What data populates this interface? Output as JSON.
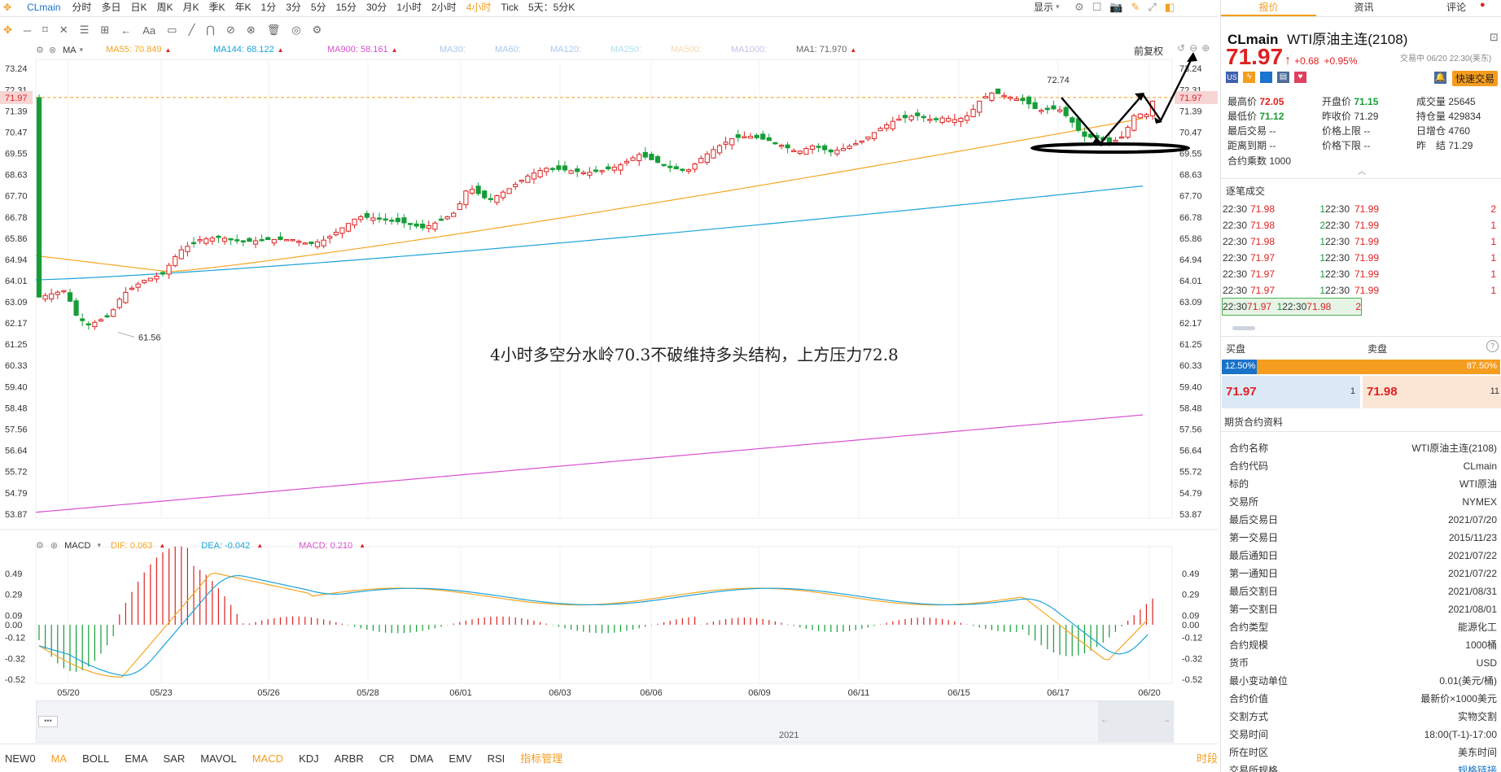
{
  "toolbar": {
    "symbol": "CLmain",
    "periods": [
      "分时",
      "多日",
      "日K",
      "周K",
      "月K",
      "季K",
      "年K",
      "1分",
      "3分",
      "5分",
      "15分",
      "30分",
      "1小时",
      "2小时",
      "4小时",
      "Tick",
      "5天：5分K"
    ],
    "active_period": "4小时",
    "display_label": "显示",
    "draw_tools": [
      "✥",
      "─",
      "⌑",
      "✕",
      "☰",
      "⊞",
      "←",
      "Aa",
      "▭",
      "╱",
      "⋂",
      "⊘",
      "⊗",
      "🗑",
      "◎",
      "⚙"
    ]
  },
  "main_legend": {
    "ma_label": "MA",
    "items": [
      {
        "text": "MA55: 70.849",
        "color": "#f5a623"
      },
      {
        "text": "MA144: 68.122",
        "color": "#1aa3d9"
      },
      {
        "text": "MA900: 58.161",
        "color": "#d94fd1"
      },
      {
        "text": "MA30:",
        "color": "#a8c9f0"
      },
      {
        "text": "MA60:",
        "color": "#a8c9f0"
      },
      {
        "text": "MA120:",
        "color": "#a8c9f0"
      },
      {
        "text": "MA250:",
        "color": "#a8e0f0"
      },
      {
        "text": "MA500:",
        "color": "#f3dcb0"
      },
      {
        "text": "MA1000:",
        "color": "#c9c0f0"
      },
      {
        "text": "MA1: 71.970",
        "color": "#666666"
      }
    ],
    "restore_label": "前复权"
  },
  "price_axis": [
    "73.24",
    "72.31",
    "71.39",
    "70.47",
    "69.55",
    "68.63",
    "67.70",
    "66.78",
    "65.86",
    "64.94",
    "64.01",
    "63.09",
    "62.17",
    "61.25",
    "60.33",
    "59.40",
    "58.48",
    "57.56",
    "56.64",
    "55.72",
    "54.79",
    "53.87"
  ],
  "current_price_tag": "71.97",
  "annotation": "4小时多空分水岭70.3不破维持多头结构，上方压力72.8",
  "high_label": "72.74",
  "low_label": "61.56",
  "macd_legend": {
    "label": "MACD",
    "dif": "DIF: 0.063",
    "dea": "DEA: -0.042",
    "macd": "MACD: 0.210"
  },
  "macd_axis": [
    "0.49",
    "0.29",
    "0.09",
    "0.00",
    "-0.12",
    "-0.32",
    "-0.52"
  ],
  "date_axis": [
    "05/20",
    "05/23",
    "05/26",
    "05/28",
    "06/01",
    "06/03",
    "06/06",
    "06/09",
    "06/11",
    "06/15",
    "06/17",
    "06/20"
  ],
  "navigator_year": "2021",
  "bottom_indicators": [
    "NEW0",
    "MA",
    "BOLL",
    "EMA",
    "SAR",
    "MAVOL",
    "MACD",
    "KDJ",
    "ARBR",
    "CR",
    "DMA",
    "EMV",
    "RSI",
    "指标管理"
  ],
  "bottom_active": [
    "MA",
    "MACD"
  ],
  "bottom_right": "时段",
  "right_tabs": [
    "报价",
    "资讯",
    "评论"
  ],
  "quote": {
    "code": "CLmain",
    "name": "WTI原油主连(2108)",
    "price": "71.97",
    "arrow": "↑",
    "change": "+0.68",
    "change_pct": "+0.95%",
    "trade_time": "交易中 06/20 22:30(美东)",
    "quick_trade": "快速交易",
    "stats": [
      {
        "k": "最高价",
        "v": "72.05",
        "c": "red"
      },
      {
        "k": "开盘价",
        "v": "71.15",
        "c": "green"
      },
      {
        "k": "成交量",
        "v": "25645",
        "c": ""
      },
      {
        "k": "最低价",
        "v": "71.12",
        "c": "green"
      },
      {
        "k": "昨收价",
        "v": "71.29",
        "c": ""
      },
      {
        "k": "持仓量",
        "v": "429834",
        "c": ""
      },
      {
        "k": "最后交易",
        "v": "--",
        "c": ""
      },
      {
        "k": "价格上限",
        "v": "--",
        "c": ""
      },
      {
        "k": "日增仓",
        "v": "4760",
        "c": ""
      },
      {
        "k": "距离到期",
        "v": "--",
        "c": ""
      },
      {
        "k": "价格下限",
        "v": "--",
        "c": ""
      },
      {
        "k": "昨　结",
        "v": "71.29",
        "c": ""
      }
    ],
    "multiplier": "合约乘数 1000"
  },
  "trades_title": "逐笔成交",
  "trades": [
    [
      "22:30",
      "71.98",
      "1",
      "22:30",
      "71.99",
      "2"
    ],
    [
      "22:30",
      "71.98",
      "2",
      "22:30",
      "71.99",
      "1"
    ],
    [
      "22:30",
      "71.98",
      "1",
      "22:30",
      "71.99",
      "1"
    ],
    [
      "22:30",
      "71.97",
      "1",
      "22:30",
      "71.99",
      "1"
    ],
    [
      "22:30",
      "71.97",
      "1",
      "22:30",
      "71.99",
      "1"
    ],
    [
      "22:30",
      "71.97",
      "1",
      "22:30",
      "71.99",
      "1"
    ],
    [
      "22:30",
      "71.97",
      "1",
      "22:30",
      "71.98",
      "2"
    ]
  ],
  "orderbook": {
    "buy_label": "买盘",
    "sell_label": "卖盘",
    "buy_pct": "12.50%",
    "sell_pct": "87.50%",
    "buy_price": "71.97",
    "buy_qty": "1",
    "sell_price": "71.98",
    "sell_qty": "11"
  },
  "contract_title": "期货合约资料",
  "contract": [
    [
      "合约名称",
      "WTI原油主连(2108)"
    ],
    [
      "合约代码",
      "CLmain"
    ],
    [
      "标的",
      "WTI原油"
    ],
    [
      "交易所",
      "NYMEX"
    ],
    [
      "最后交易日",
      "2021/07/20"
    ],
    [
      "第一交易日",
      "2015/11/23"
    ],
    [
      "最后通知日",
      "2021/07/22"
    ],
    [
      "第一通知日",
      "2021/07/22"
    ],
    [
      "最后交割日",
      "2021/08/31"
    ],
    [
      "第一交割日",
      "2021/08/01"
    ],
    [
      "合约类型",
      "能源化工"
    ],
    [
      "合约规模",
      "1000桶"
    ],
    [
      "货币",
      "USD"
    ],
    [
      "最小变动单位",
      "0.01(美元/桶)"
    ],
    [
      "合约价值",
      "最新价×1000美元"
    ],
    [
      "交割方式",
      "实物交割"
    ],
    [
      "交易时间",
      "18:00(T-1)-17:00"
    ],
    [
      "所在时区",
      "美东时间"
    ],
    [
      "交易所规格",
      "规格链接"
    ]
  ],
  "colors": {
    "up": "#e02020",
    "down": "#179d38",
    "accent": "#f59d1e",
    "ma55": "#f5a623",
    "ma144": "#1aa3d9",
    "ma900": "#d94fd1"
  }
}
